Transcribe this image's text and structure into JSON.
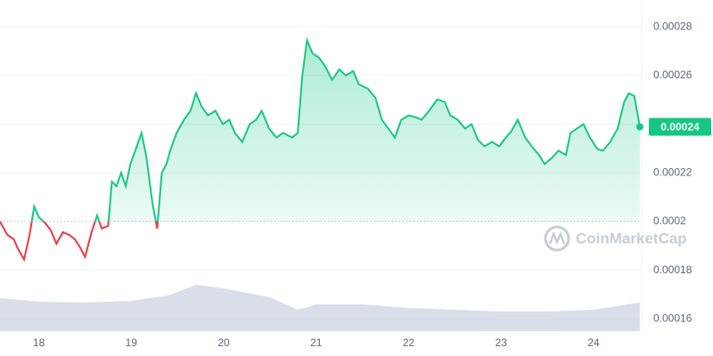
{
  "chart_data": {
    "type": "line",
    "x": [
      17.58,
      17.66,
      17.73,
      17.77,
      17.84,
      17.9,
      17.95,
      18.0,
      18.07,
      18.13,
      18.19,
      18.26,
      18.33,
      18.39,
      18.45,
      18.5,
      18.57,
      18.63,
      18.68,
      18.75,
      18.79,
      18.84,
      18.89,
      18.94,
      18.99,
      19.06,
      19.11,
      19.16,
      19.23,
      19.28,
      19.33,
      19.38,
      19.42,
      19.49,
      19.57,
      19.64,
      19.7,
      19.76,
      19.83,
      19.91,
      19.99,
      20.06,
      20.12,
      20.2,
      20.28,
      20.35,
      20.41,
      20.49,
      20.57,
      20.64,
      20.74,
      20.8,
      20.85,
      20.9,
      20.96,
      21.03,
      21.1,
      21.17,
      21.25,
      21.32,
      21.4,
      21.46,
      21.56,
      21.64,
      21.71,
      21.78,
      21.85,
      21.92,
      22.0,
      22.07,
      22.14,
      22.22,
      22.31,
      22.39,
      22.45,
      22.53,
      22.61,
      22.68,
      22.75,
      22.82,
      22.9,
      22.98,
      23.05,
      23.11,
      23.18,
      23.26,
      23.33,
      23.41,
      23.47,
      23.55,
      23.62,
      23.7,
      23.75,
      23.82,
      23.89,
      23.96,
      24.04,
      24.1,
      24.18,
      24.26,
      24.33,
      24.38,
      24.44,
      24.5
    ],
    "values": [
      0.0002,
      0.0001945,
      0.0001927,
      0.0001891,
      0.0001844,
      0.0001945,
      0.0002062,
      0.0002018,
      0.0001993,
      0.0001964,
      0.0001909,
      0.0001956,
      0.0001945,
      0.0001927,
      0.0001891,
      0.0001855,
      0.0001956,
      0.0002025,
      0.0001971,
      0.0001982,
      0.0002164,
      0.0002145,
      0.00022,
      0.0002145,
      0.0002236,
      0.0002309,
      0.0002364,
      0.0002273,
      0.0002073,
      0.0001971,
      0.00022,
      0.0002236,
      0.0002291,
      0.0002364,
      0.0002418,
      0.0002455,
      0.0002527,
      0.0002473,
      0.0002436,
      0.0002455,
      0.00024,
      0.0002418,
      0.0002364,
      0.0002327,
      0.00024,
      0.0002418,
      0.0002455,
      0.0002382,
      0.0002345,
      0.0002364,
      0.0002345,
      0.0002364,
      0.00026,
      0.0002745,
      0.0002691,
      0.0002673,
      0.0002636,
      0.0002582,
      0.0002625,
      0.00026,
      0.0002618,
      0.0002564,
      0.0002545,
      0.0002509,
      0.0002418,
      0.0002382,
      0.0002345,
      0.0002418,
      0.0002436,
      0.0002429,
      0.0002418,
      0.0002455,
      0.0002502,
      0.0002491,
      0.0002436,
      0.0002418,
      0.0002382,
      0.00024,
      0.0002335,
      0.0002309,
      0.0002327,
      0.0002309,
      0.0002345,
      0.0002371,
      0.0002418,
      0.0002345,
      0.0002309,
      0.0002273,
      0.0002236,
      0.0002262,
      0.0002291,
      0.0002273,
      0.0002364,
      0.0002382,
      0.00024,
      0.0002345,
      0.0002298,
      0.0002291,
      0.0002327,
      0.0002382,
      0.0002491,
      0.0002527,
      0.0002516,
      0.0002389
    ],
    "baseline": 0.0002,
    "up_color": "#16c784",
    "down_color": "#ea3943",
    "xlim": [
      17.58,
      24.52
    ],
    "xticks": [
      18,
      19,
      20,
      21,
      22,
      23,
      24
    ],
    "ylim": [
      0.000155,
      0.000291
    ],
    "yticks": [
      0.00016,
      0.00018,
      0.0002,
      0.00022,
      0.00024,
      0.00026,
      0.00028
    ],
    "grid": true,
    "last_price_label": "0.00024",
    "watermark": "CoinMarketCap",
    "volume": {
      "x": [
        17.58,
        18.0,
        18.5,
        19.0,
        19.4,
        19.7,
        20.0,
        20.5,
        20.8,
        21.0,
        21.5,
        22.0,
        22.5,
        23.0,
        23.5,
        24.0,
        24.5
      ],
      "values": [
        37,
        33,
        32,
        34,
        40,
        52,
        48,
        38,
        24,
        30,
        30,
        26,
        24,
        22,
        22,
        24,
        32
      ],
      "color": "#cfd6e4",
      "y2lim": [
        0,
        60
      ]
    }
  }
}
